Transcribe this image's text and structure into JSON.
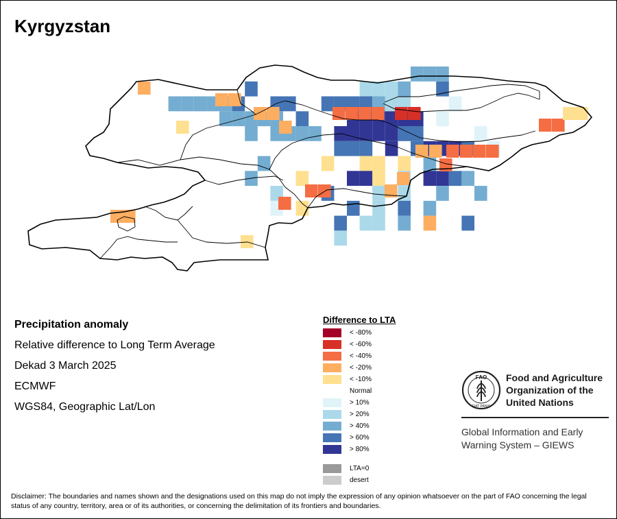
{
  "title": "Kyrgyzstan",
  "info": {
    "heading": "Precipitation anomaly",
    "line1": "Relative difference to Long Term Average",
    "line2": "Dekad 3 March 2025",
    "line3": "ECMWF",
    "line4": "WGS84, Geographic Lat/Lon"
  },
  "legend": {
    "title": "Difference to LTA",
    "items": [
      {
        "label": "< -80%",
        "color": "#a50026"
      },
      {
        "label": "< -60%",
        "color": "#d73027"
      },
      {
        "label": "< -40%",
        "color": "#f46d43"
      },
      {
        "label": "< -20%",
        "color": "#fdae61"
      },
      {
        "label": "< -10%",
        "color": "#fee090"
      },
      {
        "label": "Normal",
        "color": ""
      },
      {
        "label": "> 10%",
        "color": "#e0f3f8"
      },
      {
        "label": "> 20%",
        "color": "#abd9e9"
      },
      {
        "label": "> 40%",
        "color": "#74add1"
      },
      {
        "label": "> 60%",
        "color": "#4575b4"
      },
      {
        "label": "> 80%",
        "color": "#313695"
      }
    ],
    "extra": [
      {
        "label": "LTA=0",
        "color": "#999999"
      },
      {
        "label": "desert",
        "color": "#cccccc"
      }
    ]
  },
  "fao": {
    "line1": "Food and Agriculture",
    "line2": "Organization of the",
    "line3": "United Nations",
    "emblem_top": "FAO",
    "emblem_motto": "FIAT PANIS",
    "giews_line1": "Global Information and Early",
    "giews_line2": "Warning System – GIEWS"
  },
  "disclaimer": "Disclaimer: The boundaries and names shown and the designations used on this map do not imply the expression of any opinion whatsoever on the part of FAO concerning the legal status of any country, territory, area or of its authorities, or concerning the delimitation of its frontiers and boundaries.",
  "map_cells": [
    [
      "10",
      "                    333",
      "11"
    ],
    [
      "10",
      "       4        2223  4",
      "11"
    ],
    [
      "11",
      "333334  44  4444322   1",
      "12"
    ],
    [
      "12",
      "   33333 4   555555 1",
      "15"
    ],
    [
      "13",
      "    3 3333 5555544    1",
      "16"
    ],
    [
      "14",
      "          444 5 45554 1",
      "17"
    ],
    [
      "16",
      "  3    6  66 6 3  ",
      "20"
    ],
    [
      "16",
      " 3   6   556 2 5543",
      "20"
    ],
    [
      "17",
      "  2   4   2 2  3  3",
      "21"
    ],
    [
      "17",
      "  1 6   4 2 4 3   ",
      "21"
    ],
    [
      "20",
      "    4 22 3 7  4 ",
      "23"
    ],
    [
      "22",
      "  2 ",
      "23"
    ],
    [
      "23",
      "  ",
      "22"
    ]
  ]
}
